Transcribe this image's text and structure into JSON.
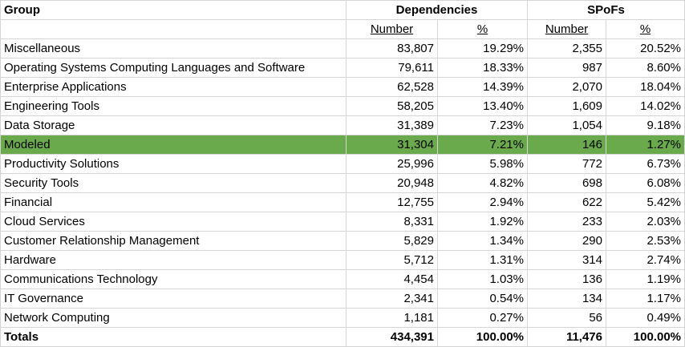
{
  "header": {
    "group": "Group",
    "dependencies": "Dependencies",
    "spofs": "SPoFs",
    "number": "Number",
    "percent": "%"
  },
  "rows": [
    {
      "group": "Miscellaneous",
      "dep_num": "83,807",
      "dep_pct": "19.29%",
      "spof_num": "2,355",
      "spof_pct": "20.52%"
    },
    {
      "group": "Operating Systems Computing Languages and Software",
      "dep_num": "79,611",
      "dep_pct": "18.33%",
      "spof_num": "987",
      "spof_pct": "8.60%"
    },
    {
      "group": "Enterprise Applications",
      "dep_num": "62,528",
      "dep_pct": "14.39%",
      "spof_num": "2,070",
      "spof_pct": "18.04%"
    },
    {
      "group": "Engineering Tools",
      "dep_num": "58,205",
      "dep_pct": "13.40%",
      "spof_num": "1,609",
      "spof_pct": "14.02%"
    },
    {
      "group": "Data Storage",
      "dep_num": "31,389",
      "dep_pct": "7.23%",
      "spof_num": "1,054",
      "spof_pct": "9.18%"
    },
    {
      "group": "Modeled",
      "dep_num": "31,304",
      "dep_pct": "7.21%",
      "spof_num": "146",
      "spof_pct": "1.27%"
    },
    {
      "group": "Productivity Solutions",
      "dep_num": "25,996",
      "dep_pct": "5.98%",
      "spof_num": "772",
      "spof_pct": "6.73%"
    },
    {
      "group": "Security Tools",
      "dep_num": "20,948",
      "dep_pct": "4.82%",
      "spof_num": "698",
      "spof_pct": "6.08%"
    },
    {
      "group": "Financial",
      "dep_num": "12,755",
      "dep_pct": "2.94%",
      "spof_num": "622",
      "spof_pct": "5.42%"
    },
    {
      "group": "Cloud Services",
      "dep_num": "8,331",
      "dep_pct": "1.92%",
      "spof_num": "233",
      "spof_pct": "2.03%"
    },
    {
      "group": "Customer Relationship Management",
      "dep_num": "5,829",
      "dep_pct": "1.34%",
      "spof_num": "290",
      "spof_pct": "2.53%"
    },
    {
      "group": "Hardware",
      "dep_num": "5,712",
      "dep_pct": "1.31%",
      "spof_num": "314",
      "spof_pct": "2.74%"
    },
    {
      "group": "Communications Technology",
      "dep_num": "4,454",
      "dep_pct": "1.03%",
      "spof_num": "136",
      "spof_pct": "1.19%"
    },
    {
      "group": "IT Governance",
      "dep_num": "2,341",
      "dep_pct": "0.54%",
      "spof_num": "134",
      "spof_pct": "1.17%"
    },
    {
      "group": "Network Computing",
      "dep_num": "1,181",
      "dep_pct": "0.27%",
      "spof_num": "56",
      "spof_pct": "0.49%"
    }
  ],
  "totals": {
    "group": "Totals",
    "dep_num": "434,391",
    "dep_pct": "100.00%",
    "spof_num": "11,476",
    "spof_pct": "100.00%"
  },
  "highlight_color": "#6aaa4c"
}
